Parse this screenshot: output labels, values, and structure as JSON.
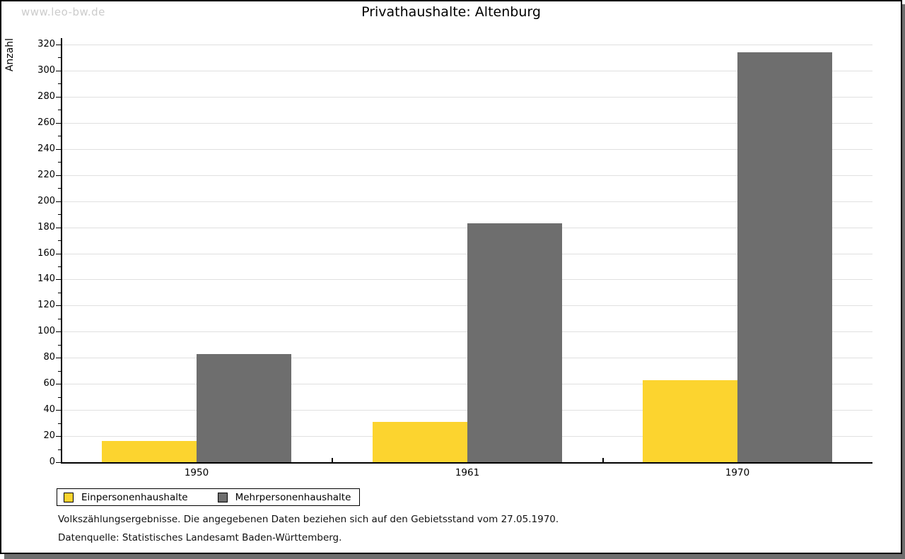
{
  "watermark": "www.leo-bw.de",
  "title": "Privathaushalte:  Altenburg",
  "chart_data": {
    "type": "bar",
    "title": "Privathaushalte: Altenburg",
    "xlabel": "",
    "ylabel": "Anzahl",
    "categories": [
      "1950",
      "1961",
      "1970"
    ],
    "series": [
      {
        "name": "Einpersonenhaushalte",
        "color": "#fcd42f",
        "values": [
          16,
          31,
          63
        ]
      },
      {
        "name": "Mehrpersonenhaushalte",
        "color": "#6e6e6e",
        "values": [
          83,
          183,
          314
        ]
      }
    ],
    "ylim": [
      0,
      320
    ],
    "ytick_step": 20,
    "yminor_step": 10,
    "grid": true,
    "legend_position": "bottom-left"
  },
  "footnotes": {
    "line1": "Volkszählungsergebnisse. Die angegebenen Daten beziehen sich auf den Gebietsstand vom 27.05.1970.",
    "line2": "Datenquelle: Statistisches Landesamt Baden-Württemberg."
  },
  "colors": {
    "watermark": "#cccccc",
    "gridline": "#e0e0e0",
    "axis": "#000000",
    "shadow": "#6e6e6e",
    "background": "#ffffff"
  }
}
